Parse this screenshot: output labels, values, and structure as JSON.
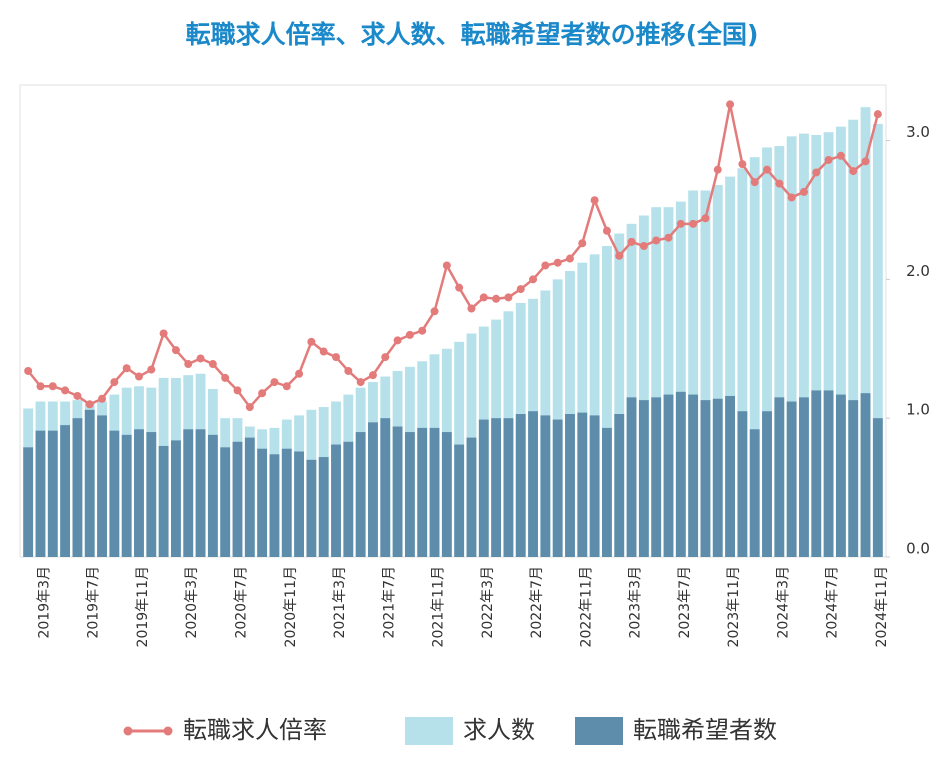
{
  "chart_data": {
    "type": "bar-line",
    "title": "転職求人倍率、求人数、転職希望者数の推移(全国)",
    "categories": [
      null,
      "2019年3月",
      null,
      null,
      null,
      "2019年7月",
      null,
      null,
      null,
      "2019年11月",
      null,
      null,
      null,
      "2020年3月",
      null,
      null,
      null,
      "2020年7月",
      null,
      null,
      null,
      "2020年11月",
      null,
      null,
      null,
      "2021年3月",
      null,
      null,
      null,
      "2021年7月",
      null,
      null,
      null,
      "2021年11月",
      null,
      null,
      null,
      "2022年3月",
      null,
      null,
      null,
      "2022年7月",
      null,
      null,
      null,
      "2022年11月",
      null,
      null,
      null,
      "2023年3月",
      null,
      null,
      null,
      "2023年7月",
      null,
      null,
      null,
      "2023年11月",
      null,
      null,
      null,
      "2024年3月",
      null,
      null,
      null,
      "2024年7月",
      null,
      null,
      null,
      "2024年11月"
    ],
    "series": [
      {
        "name": "転職求人倍率",
        "type": "line",
        "color": "#e37b7b",
        "values": [
          1.34,
          1.23,
          1.23,
          1.2,
          1.16,
          1.1,
          1.14,
          1.26,
          1.36,
          1.3,
          1.35,
          1.61,
          1.49,
          1.39,
          1.43,
          1.39,
          1.29,
          1.2,
          1.08,
          1.18,
          1.26,
          1.23,
          1.32,
          1.55,
          1.48,
          1.44,
          1.34,
          1.26,
          1.31,
          1.44,
          1.56,
          1.6,
          1.63,
          1.77,
          2.1,
          1.94,
          1.79,
          1.87,
          1.86,
          1.87,
          1.93,
          2.0,
          2.1,
          2.12,
          2.15,
          2.26,
          2.57,
          2.35,
          2.17,
          2.27,
          2.24,
          2.28,
          2.3,
          2.4,
          2.4,
          2.44,
          2.79,
          3.26,
          2.83,
          2.7,
          2.79,
          2.69,
          2.59,
          2.63,
          2.77,
          2.86,
          2.89,
          2.78,
          2.85,
          3.19
        ]
      },
      {
        "name": "求人数",
        "type": "bar",
        "color": "#b6e1ea",
        "values": [
          1.07,
          1.12,
          1.12,
          1.12,
          1.13,
          1.11,
          1.12,
          1.17,
          1.22,
          1.23,
          1.22,
          1.29,
          1.29,
          1.31,
          1.32,
          1.21,
          1.0,
          1.0,
          0.94,
          0.92,
          0.93,
          0.99,
          1.02,
          1.06,
          1.08,
          1.12,
          1.17,
          1.22,
          1.26,
          1.3,
          1.34,
          1.37,
          1.41,
          1.46,
          1.5,
          1.55,
          1.61,
          1.66,
          1.71,
          1.77,
          1.83,
          1.86,
          1.92,
          2.0,
          2.06,
          2.12,
          2.18,
          2.24,
          2.33,
          2.4,
          2.46,
          2.52,
          2.52,
          2.56,
          2.64,
          2.64,
          2.68,
          2.74,
          2.8,
          2.88,
          2.95,
          2.96,
          3.03,
          3.05,
          3.04,
          3.06,
          3.1,
          3.15,
          3.24,
          3.12
        ]
      },
      {
        "name": "転職希望者数",
        "type": "bar",
        "color": "#5e8dab",
        "values": [
          0.79,
          0.91,
          0.91,
          0.95,
          1.0,
          1.06,
          1.02,
          0.91,
          0.88,
          0.92,
          0.9,
          0.8,
          0.84,
          0.92,
          0.92,
          0.88,
          0.79,
          0.83,
          0.86,
          0.78,
          0.74,
          0.78,
          0.76,
          0.7,
          0.72,
          0.81,
          0.83,
          0.9,
          0.97,
          1.0,
          0.94,
          0.9,
          0.93,
          0.93,
          0.9,
          0.81,
          0.86,
          0.99,
          1.0,
          1.0,
          1.03,
          1.05,
          1.02,
          0.99,
          1.03,
          1.04,
          1.02,
          0.93,
          1.03,
          1.15,
          1.13,
          1.15,
          1.17,
          1.19,
          1.17,
          1.13,
          1.14,
          1.16,
          1.05,
          0.92,
          1.05,
          1.15,
          1.12,
          1.15,
          1.2,
          1.2,
          1.17,
          1.13,
          1.18,
          1.0
        ]
      }
    ],
    "ylim": [
      0,
      3.4
    ],
    "yticks": [
      {
        "value": 0,
        "label": "0.0"
      },
      {
        "value": 1,
        "label": "1.0"
      },
      {
        "value": 2,
        "label": "2.0"
      },
      {
        "value": 3,
        "label": "3.0"
      }
    ],
    "legend": "bottom"
  }
}
